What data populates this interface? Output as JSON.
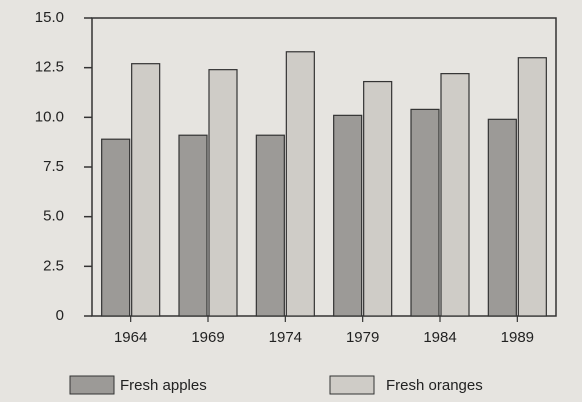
{
  "chart_data": {
    "type": "bar",
    "categories": [
      "1964",
      "1969",
      "1974",
      "1979",
      "1984",
      "1989"
    ],
    "series": [
      {
        "name": "Fresh apples",
        "color": "#9c9a97",
        "values": [
          8.9,
          9.1,
          9.1,
          10.1,
          10.4,
          9.9
        ]
      },
      {
        "name": "Fresh oranges",
        "color": "#cfccc7",
        "values": [
          12.7,
          12.4,
          13.3,
          11.8,
          12.2,
          13.0
        ]
      }
    ],
    "ylim": [
      0,
      15
    ],
    "yticks": [
      0,
      2.5,
      {
        "value": 5,
        "label": "5.0"
      },
      7.5,
      {
        "value": 10,
        "label": "10.0"
      },
      12.5,
      {
        "value": 15,
        "label": "15.0"
      }
    ]
  }
}
